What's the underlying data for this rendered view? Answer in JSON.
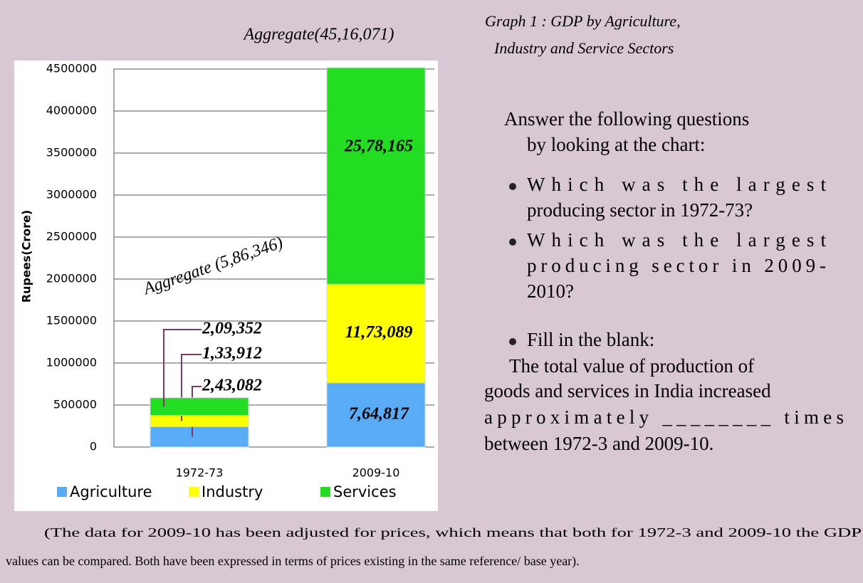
{
  "chart_data": {
    "type": "bar",
    "stacked": true,
    "ylabel": "Rupees(Crore)",
    "categories": [
      "1972-73",
      "2009-10"
    ],
    "series": [
      {
        "name": "Agriculture",
        "color": "#5aabf5",
        "values": [
          243082,
          764817
        ],
        "value_labels": [
          "2,43,082",
          "7,64,817"
        ]
      },
      {
        "name": "Industry",
        "color": "#ffff00",
        "values": [
          133912,
          1173089
        ],
        "value_labels": [
          "1,33,912",
          "11,73,089"
        ]
      },
      {
        "name": "Services",
        "color": "#22dd22",
        "values": [
          209352,
          2578165
        ],
        "value_labels": [
          "2,09,352",
          "25,78,165"
        ]
      }
    ],
    "annotations": [
      "Aggregate (5,86,346)",
      "Aggregate(45,16,071)"
    ],
    "ylim": [
      0,
      4500000
    ],
    "yticks": [
      0,
      500000,
      1000000,
      1500000,
      2000000,
      2500000,
      3000000,
      3500000,
      4000000,
      4500000
    ],
    "grid": true,
    "legend": "bottom"
  },
  "heading": [
    "Graph 1 :  GDP by Agriculture,",
    "Industry and Service Sectors"
  ],
  "intro": [
    "Answer the following questions",
    "by looking at the chart:"
  ],
  "questions": [
    {
      "lines": [
        "Which was the largest",
        "producing sector in 1972-73?"
      ]
    },
    {
      "lines": [
        "Which was the largest",
        "producing sector in 2009-",
        "2010?"
      ]
    },
    {
      "lines": [
        "Fill in the blank:"
      ]
    }
  ],
  "blank_paragraph": [
    "The total value of production of",
    "goods and services in India increased",
    "approximately ________ times",
    "between 1972-3 and 2009-10."
  ],
  "caption": [
    "(The data for 2009-10 has been adjusted for prices, which means that both for 1972-3 and 2009-10 the GDP",
    "values can be compared. Both have been expressed in terms of prices existing in the same reference/ base year)."
  ]
}
